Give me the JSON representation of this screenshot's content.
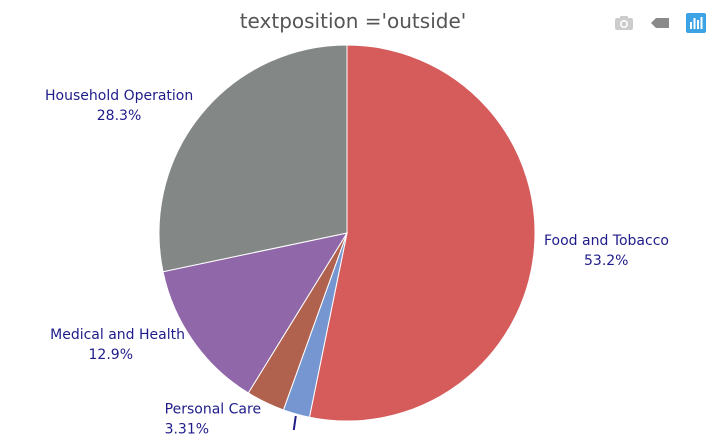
{
  "chart_data": {
    "type": "pie",
    "title": "textposition ='outside'",
    "labels": [
      "Food and Tobacco",
      "Household Operation",
      "Medical and Health",
      "Personal Care",
      "Private Education"
    ],
    "values": [
      53.2,
      28.3,
      12.9,
      3.31,
      2.29
    ],
    "percent_labels": [
      "53.2%",
      "28.3%",
      "12.9%",
      "3.31%",
      ""
    ],
    "colors": [
      "#d65c5c",
      "#838786",
      "#9067a8",
      "#b0624f",
      "#7596d1"
    ],
    "text_color": "#1f1c8a",
    "textposition": "outside",
    "direction": "clockwise",
    "rotation_deg": 0,
    "sort": "descending"
  },
  "modebar": {
    "buttons": [
      {
        "name": "camera-icon",
        "color": "#cccccc"
      },
      {
        "name": "tag-icon",
        "color": "#8a8a8a"
      },
      {
        "name": "plotly-logo-icon",
        "color": "#3ea3e4"
      }
    ]
  }
}
